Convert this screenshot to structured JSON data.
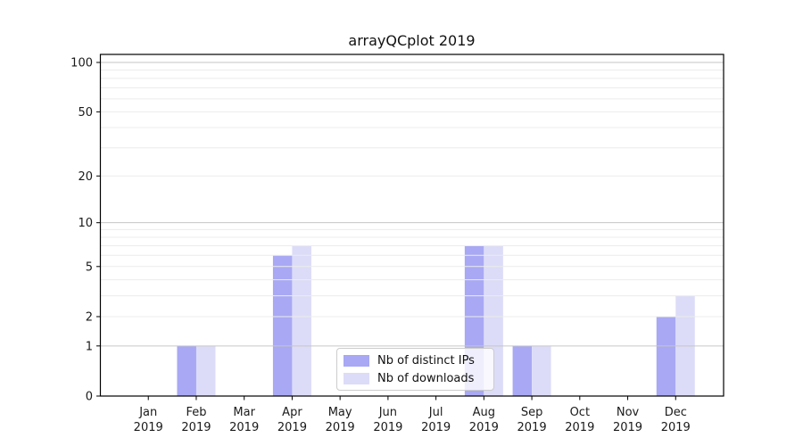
{
  "title": "arrayQCplot 2019",
  "chart_data": {
    "type": "bar",
    "title": "arrayQCplot 2019",
    "categories": [
      "Jan",
      "Feb",
      "Mar",
      "Apr",
      "May",
      "Jun",
      "Jul",
      "Aug",
      "Sep",
      "Oct",
      "Nov",
      "Dec"
    ],
    "x_tick_year": "2019",
    "series": [
      {
        "name": "Nb of distinct IPs",
        "color": "#a8a8f4",
        "values": [
          0,
          1,
          0,
          6,
          0,
          0,
          0,
          7,
          1,
          0,
          0,
          2
        ]
      },
      {
        "name": "Nb of downloads",
        "color": "#dcdcf8",
        "values": [
          0,
          1,
          0,
          7,
          0,
          0,
          0,
          7,
          1,
          0,
          0,
          3
        ]
      }
    ],
    "yscale": "log1p",
    "ylim": [
      0,
      112
    ],
    "y_ticks": [
      0,
      1,
      2,
      5,
      10,
      20,
      50,
      100
    ],
    "grid": {
      "minor": [
        2,
        3,
        4,
        5,
        6,
        7,
        8,
        9,
        20,
        30,
        40,
        50,
        60,
        70,
        80,
        90
      ],
      "major": [
        1,
        10,
        100
      ],
      "minor_color": "#ececec",
      "major_color": "#c6c6c6",
      "drawn_over_bars": true
    },
    "legend_position": "lower center",
    "axis_color": "#000000",
    "text_color": "#1a1a1a"
  }
}
